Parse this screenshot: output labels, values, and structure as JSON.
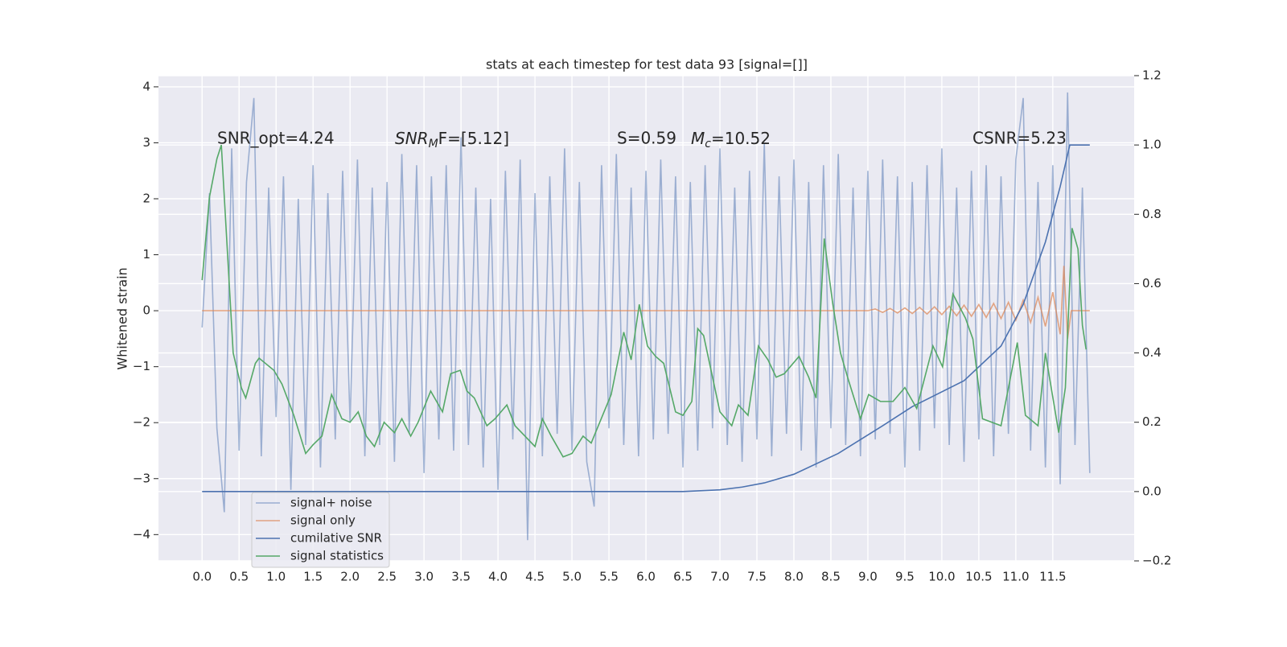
{
  "chart_data": {
    "type": "line",
    "title": "stats at each timestep for test data 93 [signal=[]]",
    "y_label": "Whitened strain",
    "x": [
      0.0,
      0.1,
      0.2,
      0.3,
      0.4,
      0.5,
      0.6,
      0.7,
      0.8,
      0.9,
      1.0,
      1.1,
      1.2,
      1.3,
      1.4,
      1.5,
      1.6,
      1.7,
      1.8,
      1.9,
      2.0,
      2.1,
      2.2,
      2.3,
      2.4,
      2.5,
      2.6,
      2.7,
      2.8,
      2.9,
      3.0,
      3.1,
      3.2,
      3.3,
      3.4,
      3.5,
      3.6,
      3.7,
      3.8,
      3.9,
      4.0,
      4.1,
      4.2,
      4.3,
      4.4,
      4.5,
      4.6,
      4.7,
      4.8,
      4.9,
      5.0,
      5.1,
      5.2,
      5.3,
      5.4,
      5.5,
      5.6,
      5.7,
      5.8,
      5.9,
      6.0,
      6.1,
      6.2,
      6.3,
      6.4,
      6.5,
      6.6,
      6.7,
      6.8,
      6.9,
      7.0,
      7.1,
      7.2,
      7.3,
      7.4,
      7.5,
      7.6,
      7.7,
      7.8,
      7.9,
      8.0,
      8.1,
      8.2,
      8.3,
      8.4,
      8.5,
      8.6,
      8.7,
      8.8,
      8.9,
      9.0,
      9.1,
      9.2,
      9.3,
      9.4,
      9.5,
      9.6,
      9.7,
      9.8,
      9.9,
      10.0,
      10.1,
      10.2,
      10.3,
      10.4,
      10.5,
      10.6,
      10.7,
      10.8,
      10.9,
      11.0,
      11.1,
      11.2,
      11.3,
      11.4,
      11.5,
      11.6,
      11.7,
      11.8,
      11.9,
      12.0
    ],
    "series": [
      {
        "name": "signal+ noise",
        "color": "#4c72b0",
        "opacity": 0.5,
        "values": [
          -0.3,
          2.1,
          -2.1,
          -3.6,
          2.9,
          -2.5,
          2.3,
          3.8,
          -2.6,
          2.2,
          -1.9,
          2.4,
          -3.2,
          2.0,
          -2.4,
          2.6,
          -2.8,
          2.1,
          -2.3,
          2.5,
          -2.0,
          2.7,
          -2.6,
          2.2,
          -2.4,
          2.3,
          -2.7,
          2.8,
          -2.2,
          2.6,
          -2.9,
          2.4,
          -2.3,
          2.6,
          -2.5,
          3.1,
          -2.4,
          2.2,
          -2.8,
          2.0,
          -3.2,
          2.5,
          -2.3,
          2.7,
          -4.1,
          2.1,
          -2.6,
          2.4,
          -2.2,
          2.9,
          -2.5,
          2.3,
          -2.7,
          -3.5,
          2.6,
          -2.1,
          2.8,
          -2.4,
          2.2,
          -2.6,
          2.5,
          -2.3,
          2.7,
          -2.2,
          2.4,
          -2.8,
          2.3,
          -2.5,
          2.6,
          -2.1,
          2.9,
          -2.4,
          2.2,
          -2.7,
          2.5,
          -2.3,
          3.0,
          -2.6,
          2.4,
          -2.2,
          2.7,
          -2.5,
          2.3,
          -2.8,
          2.6,
          -2.1,
          2.8,
          -2.4,
          2.2,
          -2.6,
          2.5,
          -2.3,
          2.7,
          -2.2,
          2.4,
          -2.8,
          2.3,
          -2.5,
          2.6,
          -2.1,
          2.9,
          -2.4,
          2.2,
          -2.7,
          2.5,
          -2.3,
          2.6,
          -2.6,
          2.4,
          -2.2,
          2.7,
          3.8,
          -2.5,
          2.3,
          -2.8,
          2.6,
          -3.1,
          3.9,
          -2.4,
          2.2,
          -2.9
        ]
      },
      {
        "name": "signal only",
        "color": "#dd8452",
        "opacity": 0.7,
        "x": [
          0,
          9.0,
          9.1,
          9.2,
          9.3,
          9.4,
          9.5,
          9.6,
          9.7,
          9.8,
          9.9,
          10.0,
          10.1,
          10.2,
          10.3,
          10.4,
          10.5,
          10.6,
          10.7,
          10.8,
          10.9,
          11.0,
          11.1,
          11.2,
          11.3,
          11.4,
          11.5,
          11.6,
          11.65,
          11.7,
          11.75,
          12.0
        ],
        "values": [
          0,
          0,
          0.03,
          -0.03,
          0.04,
          -0.04,
          0.05,
          -0.05,
          0.06,
          -0.06,
          0.07,
          -0.07,
          0.08,
          -0.09,
          0.1,
          -0.1,
          0.11,
          -0.12,
          0.13,
          -0.14,
          0.15,
          -0.17,
          0.19,
          -0.21,
          0.24,
          -0.28,
          0.33,
          -0.42,
          0.8,
          -0.5,
          0,
          0
        ]
      },
      {
        "name": "cumilative SNR",
        "color": "#4c72b0",
        "opacity": 1,
        "axis": "y2",
        "x": [
          0,
          6.5,
          7.0,
          7.3,
          7.6,
          8.0,
          8.6,
          9.2,
          9.6,
          10.3,
          10.8,
          11.1,
          11.4,
          11.6,
          11.73,
          12.0
        ],
        "values": [
          0,
          0,
          0.005,
          0.013,
          0.025,
          0.05,
          0.11,
          0.19,
          0.245,
          0.32,
          0.42,
          0.54,
          0.72,
          0.88,
          1.0,
          1.0
        ]
      },
      {
        "name": "signal statistics",
        "color": "#55a868",
        "opacity": 1,
        "axis": "y2",
        "x": [
          0,
          0.1,
          0.2,
          0.26,
          0.42,
          0.53,
          0.59,
          0.72,
          0.77,
          0.97,
          1.08,
          1.24,
          1.4,
          1.5,
          1.62,
          1.75,
          1.89,
          2.0,
          2.11,
          2.22,
          2.33,
          2.46,
          2.6,
          2.7,
          2.82,
          2.92,
          3.09,
          3.25,
          3.36,
          3.49,
          3.58,
          3.68,
          3.85,
          3.96,
          4.12,
          4.23,
          4.5,
          4.6,
          4.72,
          4.88,
          5.0,
          5.15,
          5.26,
          5.53,
          5.7,
          5.8,
          5.91,
          6.02,
          6.13,
          6.24,
          6.4,
          6.5,
          6.62,
          6.7,
          6.78,
          7.0,
          7.16,
          7.25,
          7.38,
          7.52,
          7.65,
          7.76,
          7.87,
          8.07,
          8.2,
          8.3,
          8.41,
          8.52,
          8.63,
          8.74,
          8.9,
          9.01,
          9.17,
          9.34,
          9.5,
          9.66,
          9.88,
          10.01,
          10.15,
          10.32,
          10.42,
          10.55,
          10.8,
          11.02,
          11.13,
          11.3,
          11.4,
          11.58,
          11.67,
          11.76,
          11.84,
          11.9,
          11.95
        ],
        "values": [
          0.61,
          0.85,
          0.96,
          1.0,
          0.4,
          0.3,
          0.27,
          0.37,
          0.385,
          0.35,
          0.31,
          0.22,
          0.11,
          0.135,
          0.16,
          0.28,
          0.21,
          0.2,
          0.23,
          0.16,
          0.13,
          0.2,
          0.17,
          0.21,
          0.16,
          0.2,
          0.29,
          0.23,
          0.34,
          0.35,
          0.29,
          0.27,
          0.19,
          0.21,
          0.25,
          0.19,
          0.13,
          0.21,
          0.16,
          0.1,
          0.11,
          0.16,
          0.14,
          0.28,
          0.46,
          0.38,
          0.54,
          0.42,
          0.39,
          0.37,
          0.23,
          0.22,
          0.26,
          0.47,
          0.45,
          0.23,
          0.19,
          0.25,
          0.22,
          0.42,
          0.38,
          0.33,
          0.34,
          0.39,
          0.33,
          0.27,
          0.73,
          0.55,
          0.4,
          0.32,
          0.21,
          0.28,
          0.26,
          0.26,
          0.3,
          0.24,
          0.42,
          0.36,
          0.57,
          0.5,
          0.44,
          0.21,
          0.19,
          0.43,
          0.22,
          0.19,
          0.4,
          0.17,
          0.3,
          0.76,
          0.7,
          0.48,
          0.41
        ]
      }
    ],
    "annotations": [
      {
        "text": "SNR_opt=4.24"
      },
      {
        "main": "SNR",
        "sub": "M",
        "tail": "F=[5.12]"
      },
      {
        "text": "S=0.59"
      },
      {
        "main": "M",
        "sub": "c",
        "tail": "=10.52"
      },
      {
        "text": "CSNR=5.23"
      }
    ],
    "xlim": [
      -0.59,
      12.6
    ],
    "ylim": [
      -4.47,
      4.2
    ],
    "y2lim": [
      -0.2,
      1.2
    ],
    "xticks": [
      {
        "value": 0,
        "label": "0.0"
      },
      0.5,
      {
        "value": 1,
        "label": "1.0"
      },
      1.5,
      {
        "value": 2,
        "label": "2.0"
      },
      2.5,
      {
        "value": 3,
        "label": "3.0"
      },
      3.5,
      {
        "value": 4,
        "label": "4.0"
      },
      4.5,
      {
        "value": 5,
        "label": "5.0"
      },
      5.5,
      {
        "value": 6,
        "label": "6.0"
      },
      6.5,
      {
        "value": 7,
        "label": "7.0"
      },
      7.5,
      {
        "value": 8,
        "label": "8.0"
      },
      8.5,
      {
        "value": 9,
        "label": "9.0"
      },
      9.5,
      {
        "value": 10,
        "label": "10.0"
      },
      10.5,
      {
        "value": 11,
        "label": "11.0"
      },
      11.5
    ],
    "yticks": [
      {
        "value": -4,
        "label": "−4"
      },
      {
        "value": -3,
        "label": "−3"
      },
      {
        "value": -2,
        "label": "−2"
      },
      {
        "value": -1,
        "label": "−1"
      },
      0,
      1,
      2,
      3,
      4
    ],
    "y2ticks": [
      {
        "value": -0.2,
        "label": "−0.2"
      },
      {
        "value": 0,
        "label": "0.0"
      },
      0.2,
      0.4,
      0.6,
      0.8,
      {
        "value": 1,
        "label": "1.0"
      },
      1.2
    ],
    "grid": true,
    "legend": "lower left"
  }
}
